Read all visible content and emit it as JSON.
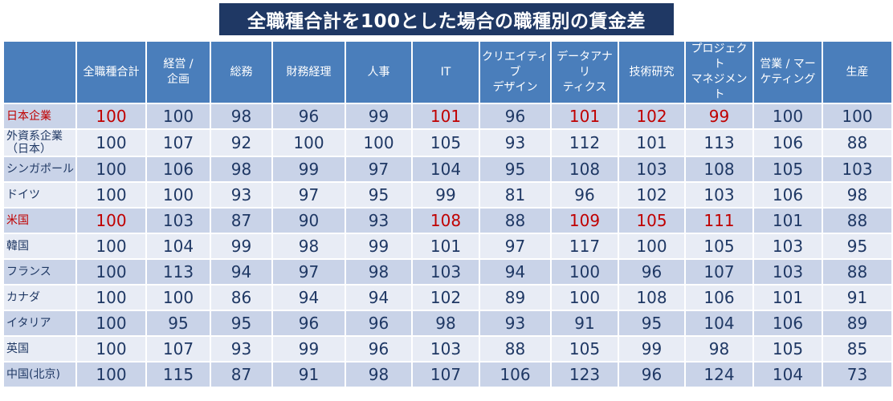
{
  "title": "全職種合計を100とした場合の職種別の賃金差",
  "columns": [
    "全職種合計",
    "経営 / 企画",
    "総務",
    "財務経理",
    "人事",
    "IT",
    "クリエイティブ デザイン",
    "データアナリ ティクス",
    "技術研究",
    "プロジェクト マネジメント",
    "営業 / マー ケティング",
    "生産"
  ],
  "column_lines": [
    [
      "全職種合計"
    ],
    [
      "経営 /",
      "企画"
    ],
    [
      "総務"
    ],
    [
      "財務経理"
    ],
    [
      "人事"
    ],
    [
      "IT"
    ],
    [
      "クリエイティブ",
      "デザイン"
    ],
    [
      "データアナリ",
      "ティクス"
    ],
    [
      "技術研究"
    ],
    [
      "プロジェクト",
      "マネジメント"
    ],
    [
      "営業 / マー",
      "ケティング"
    ],
    [
      "生産"
    ]
  ],
  "highlight_color": "#c00000",
  "header_color": "#4a7ebb",
  "title_color": "#1f3864",
  "rows": [
    {
      "name_lines": [
        "日本企業"
      ],
      "highlight": true,
      "values": [
        100,
        100,
        98,
        96,
        99,
        101,
        96,
        101,
        102,
        99,
        100,
        100
      ],
      "red": [
        true,
        false,
        false,
        false,
        false,
        true,
        false,
        true,
        true,
        true,
        false,
        false
      ]
    },
    {
      "name_lines": [
        "外資系企業",
        "（日本）"
      ],
      "highlight": false,
      "values": [
        100,
        107,
        92,
        100,
        100,
        105,
        93,
        112,
        101,
        113,
        106,
        88
      ],
      "red": []
    },
    {
      "name_lines": [
        "シンガポール"
      ],
      "highlight": false,
      "values": [
        100,
        106,
        98,
        99,
        97,
        104,
        95,
        108,
        103,
        108,
        105,
        103
      ],
      "red": []
    },
    {
      "name_lines": [
        "ドイツ"
      ],
      "highlight": false,
      "values": [
        100,
        100,
        93,
        97,
        95,
        99,
        81,
        96,
        102,
        103,
        106,
        98
      ],
      "red": []
    },
    {
      "name_lines": [
        "米国"
      ],
      "highlight": true,
      "values": [
        100,
        103,
        87,
        90,
        93,
        108,
        88,
        109,
        105,
        111,
        101,
        88
      ],
      "red": [
        true,
        false,
        false,
        false,
        false,
        true,
        false,
        true,
        true,
        true,
        false,
        false
      ]
    },
    {
      "name_lines": [
        "韓国"
      ],
      "highlight": false,
      "values": [
        100,
        104,
        99,
        98,
        99,
        101,
        97,
        117,
        100,
        105,
        103,
        95
      ],
      "red": []
    },
    {
      "name_lines": [
        "フランス"
      ],
      "highlight": false,
      "values": [
        100,
        113,
        94,
        97,
        98,
        103,
        94,
        100,
        96,
        107,
        103,
        88
      ],
      "red": []
    },
    {
      "name_lines": [
        "カナダ"
      ],
      "highlight": false,
      "values": [
        100,
        100,
        86,
        94,
        94,
        102,
        89,
        100,
        108,
        106,
        101,
        91
      ],
      "red": []
    },
    {
      "name_lines": [
        "イタリア"
      ],
      "highlight": false,
      "values": [
        100,
        95,
        95,
        96,
        96,
        98,
        93,
        91,
        95,
        104,
        106,
        89
      ],
      "red": []
    },
    {
      "name_lines": [
        "英国"
      ],
      "highlight": false,
      "values": [
        100,
        107,
        93,
        99,
        96,
        103,
        88,
        105,
        99,
        98,
        105,
        85
      ],
      "red": []
    },
    {
      "name_lines": [
        "中国(北京)"
      ],
      "highlight": false,
      "values": [
        100,
        115,
        87,
        91,
        98,
        107,
        106,
        123,
        96,
        124,
        104,
        73
      ],
      "red": []
    }
  ]
}
